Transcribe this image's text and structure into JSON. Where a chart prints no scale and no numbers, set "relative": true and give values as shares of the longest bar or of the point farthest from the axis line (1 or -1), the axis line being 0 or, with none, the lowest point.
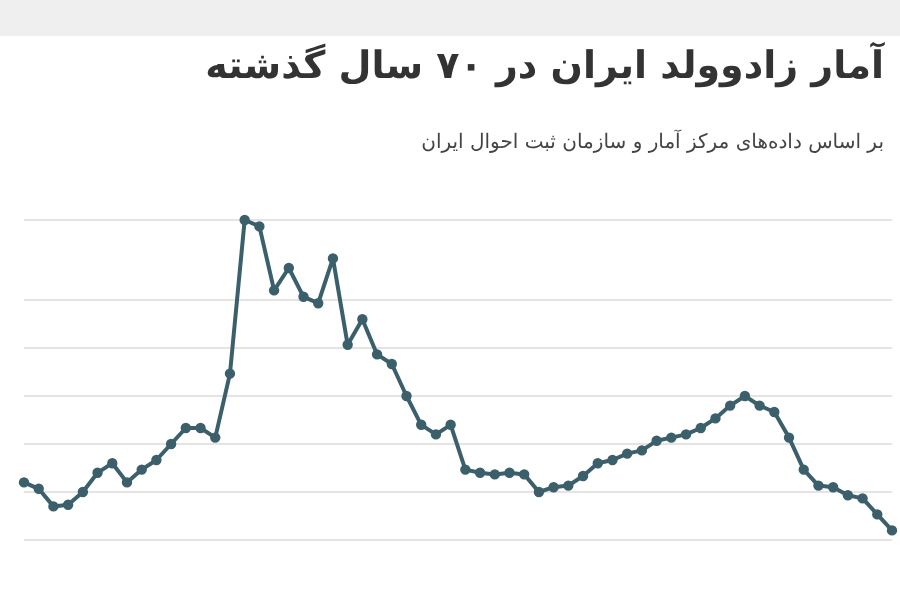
{
  "chart_data": {
    "type": "line",
    "title": "آمار زادوولد ایران در ۷۰ سال گذشته",
    "subtitle": "بر اساس داده‌های مرکز آمار و سازمان ثبت احوال ایران",
    "relative": true,
    "grid": "y",
    "marker": "circle",
    "line_style": "solid",
    "legend": false,
    "categories": [
      null,
      null,
      null,
      null,
      null,
      null,
      null,
      null,
      null,
      null,
      null,
      null,
      null,
      null,
      null,
      null,
      null,
      null,
      null,
      null,
      null,
      null,
      null,
      null,
      null,
      null,
      null,
      null,
      null,
      null,
      null,
      null,
      null,
      null,
      null,
      null,
      null,
      null,
      null,
      null,
      null,
      null,
      null,
      null,
      null,
      null,
      null,
      null,
      null,
      null,
      null,
      null,
      null,
      null,
      null,
      null,
      null,
      null,
      null,
      null
    ],
    "series": [
      {
        "color": "#3b5f6b",
        "values": [
          0.18,
          0.16,
          0.105,
          0.11,
          0.15,
          0.21,
          0.24,
          0.18,
          0.22,
          0.25,
          0.3,
          0.35,
          0.35,
          0.32,
          0.52,
          1.0,
          0.98,
          0.78,
          0.85,
          0.76,
          0.74,
          0.88,
          0.61,
          0.69,
          0.58,
          0.55,
          0.45,
          0.36,
          0.33,
          0.36,
          0.22,
          0.21,
          0.205,
          0.21,
          0.205,
          0.15,
          0.165,
          0.17,
          0.2,
          0.24,
          0.25,
          0.27,
          0.28,
          0.31,
          0.32,
          0.33,
          0.35,
          0.38,
          0.42,
          0.45,
          0.42,
          0.4,
          0.32,
          0.22,
          0.17,
          0.165,
          0.14,
          0.13,
          0.08,
          0.03
        ]
      }
    ]
  }
}
